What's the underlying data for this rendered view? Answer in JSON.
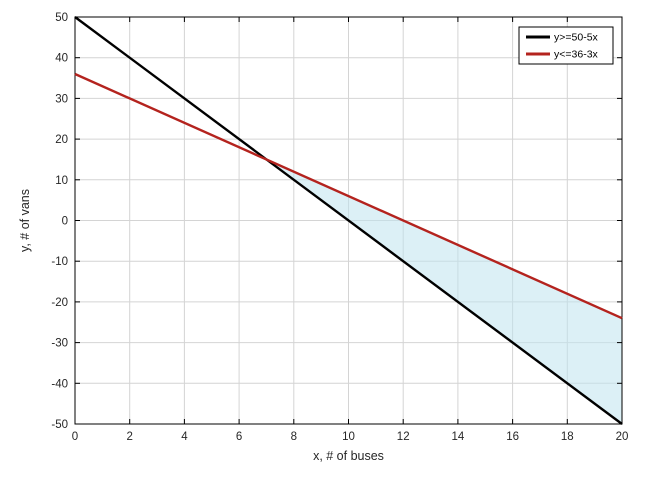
{
  "figure": {
    "background": "#ffffff"
  },
  "chart_data": {
    "type": "line",
    "title": "",
    "xlabel": "x, # of buses",
    "ylabel": "y, # of vans",
    "xlim": [
      0,
      20
    ],
    "ylim": [
      -50,
      50
    ],
    "xticks": [
      0,
      2,
      4,
      6,
      8,
      10,
      12,
      14,
      16,
      18,
      20
    ],
    "yticks": [
      -50,
      -40,
      -30,
      -20,
      -10,
      0,
      10,
      20,
      30,
      40,
      50
    ],
    "grid": true,
    "grid_color": "#d4d4d4",
    "axis_color": "#000000",
    "tick_label_color": "#262626",
    "series": [
      {
        "name": "y>=50-5x",
        "color": "#000000",
        "line_width": 2.4,
        "x": [
          0,
          20
        ],
        "y": [
          50,
          -50
        ]
      },
      {
        "name": "y<=36-3x",
        "color": "#b4231e",
        "line_width": 2.4,
        "x": [
          0,
          20
        ],
        "y": [
          36,
          -24
        ]
      }
    ],
    "shaded_region": {
      "fill_color": "#bfe3ef",
      "fill_opacity": 0.55,
      "vertices": [
        [
          7,
          15
        ],
        [
          20,
          -24
        ],
        [
          20,
          -50
        ]
      ]
    },
    "legend": {
      "position": "top-right",
      "background": "#ffffff",
      "border_color": "#000000",
      "entries": [
        "y>=50-5x",
        "y<=36-3x"
      ]
    }
  }
}
